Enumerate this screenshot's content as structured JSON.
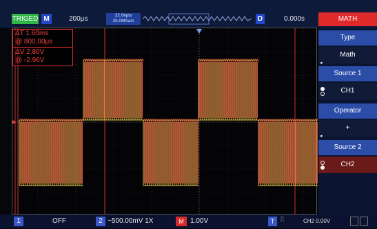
{
  "status": {
    "trigger_state": "TRIGED",
    "mode_badge": "M",
    "timebase": "200μs",
    "memory_depth": "32.0kpts",
    "sample_rate": "25.0MSa/s",
    "delay_badge": "D",
    "time_offset": "0.000s",
    "menu_title": "MATH"
  },
  "cursor_measure": {
    "delta_t": "ΔT 1.60ms",
    "freq": "@ 800.00μs",
    "delta_v": "ΔV 2.80V",
    "volt": "@ -2.96V"
  },
  "menu": {
    "items": [
      {
        "label": "Type",
        "value": "Math"
      },
      {
        "label": "Source 1",
        "value": "CH1"
      },
      {
        "label": "Operator",
        "value": "+"
      },
      {
        "label": "Source 2",
        "value": "CH2"
      }
    ]
  },
  "bottom": {
    "ch1_badge": "1",
    "ch1_state": "OFF",
    "ch2_badge": "2",
    "ch2_scale": "~500.00mV 1X",
    "math_badge": "M",
    "math_scale": "1.00V",
    "trig_badge": "T",
    "trig_slope": "⎍",
    "trig_level": "CH2 0.00V"
  },
  "colors": {
    "ch2_wave": "#e8c84a",
    "math_wave": "#e04040",
    "menu_header": "#2b4da8",
    "math_accent": "#e02a2a"
  }
}
